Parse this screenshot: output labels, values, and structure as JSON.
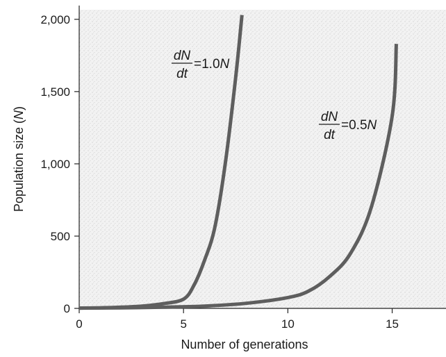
{
  "chart_data": {
    "type": "line",
    "xlabel": "Number of generations",
    "ylabel": "Population size (",
    "ylabel_var": "N",
    "ylabel_close": ")",
    "xlim": [
      0,
      17
    ],
    "ylim": [
      0,
      2100
    ],
    "x_ticks": [
      0,
      5,
      10,
      15
    ],
    "x_tick_labels": [
      "0",
      "5",
      "10",
      "15"
    ],
    "y_ticks": [
      0,
      500,
      1000,
      1500,
      2000
    ],
    "y_tick_labels": [
      "0",
      "500",
      "1,000",
      "1,500",
      "2,000"
    ],
    "grid": false,
    "series": [
      {
        "x": [
          0,
          1,
          2,
          3,
          4,
          5,
          5.5,
          6,
          6.5,
          7,
          7.5,
          7.8
        ],
        "y": [
          2,
          4,
          8,
          16,
          32,
          64,
          160,
          330,
          560,
          1000,
          1600,
          2030
        ],
        "color": "#5e5e5e",
        "annotation": {
          "numerator": "dN",
          "denominator": "dt",
          "rhs_prefix": "=1.0",
          "rhs_var": "N"
        }
      },
      {
        "x": [
          0,
          2,
          4,
          6,
          8,
          10,
          11,
          12,
          13,
          14,
          15,
          15.2
        ],
        "y": [
          2,
          4,
          8,
          16,
          35,
          75,
          120,
          220,
          380,
          700,
          1330,
          1830
        ],
        "color": "#5e5e5e",
        "annotation": {
          "numerator": "dN",
          "denominator": "dt",
          "rhs_prefix": "=0.5",
          "rhs_var": "N"
        }
      }
    ]
  }
}
